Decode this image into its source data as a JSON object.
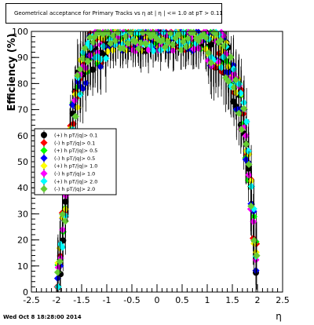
{
  "timestamp": "Wed Oct  8 18:28:00 2014",
  "chart_data": {
    "type": "scatter",
    "title": "Geometrical acceptance for Primary Tracks vs   η at |  η |  <= 1.0 at pT > 0.11",
    "xlabel": "η",
    "ylabel": "Efficiency (%)",
    "xlim": [
      -2.5,
      2.5
    ],
    "ylim": [
      0,
      100
    ],
    "xticks": [
      "-2.5",
      "-2",
      "-1.5",
      "-1",
      "-0.5",
      "0",
      "0.5",
      "1",
      "1.5",
      "2",
      "2.5"
    ],
    "yticks": [
      "0",
      "10",
      "20",
      "30",
      "40",
      "50",
      "60",
      "70",
      "80",
      "90",
      "100"
    ],
    "grid": false,
    "legend_position": "middle-left",
    "series": [
      {
        "name": "(+) h  pT/|q|> 0.1",
        "color": "#000000",
        "marker": "circle"
      },
      {
        "name": "(-) h  pT/|q|> 0.1",
        "color": "#ff0000",
        "marker": "diamond"
      },
      {
        "name": "(+) h  pT/|q|> 0.5",
        "color": "#00ff00",
        "marker": "diamond"
      },
      {
        "name": "(-) h  pT/|q|> 0.5",
        "color": "#0000ff",
        "marker": "diamond"
      },
      {
        "name": "(+) h  pT/|q|> 1.0",
        "color": "#ffff00",
        "marker": "diamond"
      },
      {
        "name": "(-) h  pT/|q|> 1.0",
        "color": "#ff00ff",
        "marker": "diamond"
      },
      {
        "name": "(+) h  pT/|q|> 2.0",
        "color": "#00ffff",
        "marker": "diamond"
      },
      {
        "name": "(-) h  pT/|q|> 2.0",
        "color": "#66cc33",
        "marker": "diamond"
      }
    ],
    "curve": {
      "x": [
        -2.05,
        -1.95,
        -1.9,
        -1.85,
        -1.8,
        -1.75,
        -1.7,
        -1.65,
        -1.6,
        -1.55,
        -1.5,
        -1.45,
        -1.4,
        -1.35,
        -1.3,
        -1.2,
        -1.1,
        -1.0,
        -0.9,
        -0.5,
        0.0,
        0.5,
        0.9,
        1.0,
        1.1,
        1.2,
        1.3,
        1.35,
        1.4,
        1.45,
        1.5,
        1.55,
        1.6,
        1.65,
        1.7,
        1.75,
        1.8,
        1.85,
        1.9,
        1.95,
        2.0,
        2.05
      ],
      "y": [
        0,
        6,
        17,
        28,
        40,
        52,
        62,
        69,
        75,
        80,
        84,
        87,
        89,
        91,
        92,
        93.5,
        94.5,
        95,
        95.5,
        95.5,
        95.5,
        95.5,
        95.5,
        95,
        94.5,
        93.5,
        92,
        90,
        88,
        85,
        82,
        79,
        76,
        72,
        68,
        62,
        54,
        44,
        32,
        19,
        8,
        0
      ]
    }
  }
}
